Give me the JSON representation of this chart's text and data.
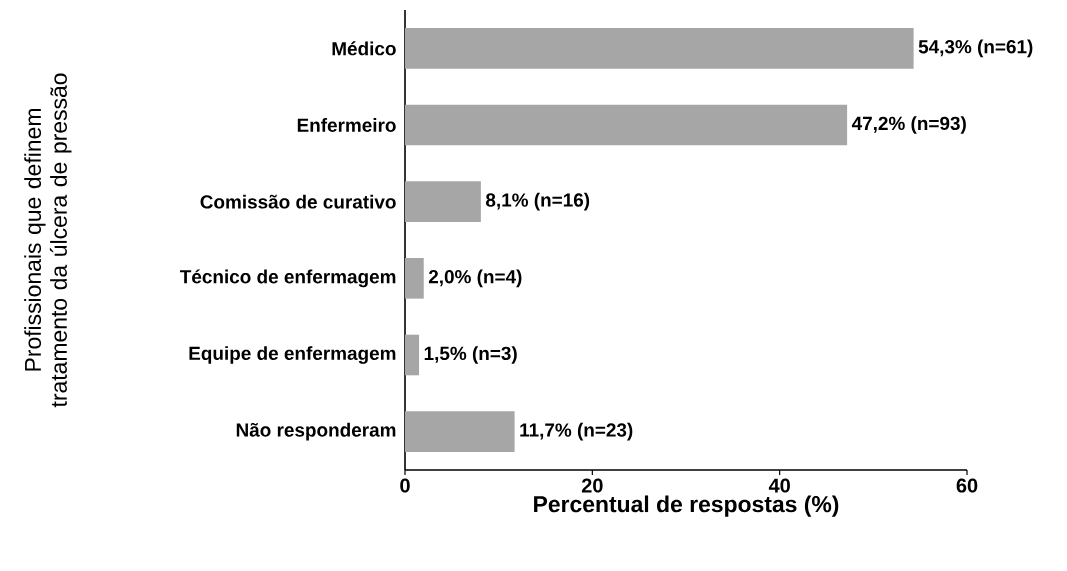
{
  "chart_data": {
    "type": "bar",
    "orientation": "horizontal",
    "categories": [
      "Médico",
      "Enfermeiro",
      "Comissão de curativo",
      "Técnico de enfermagem",
      "Equipe de enfermagem",
      "Não responderam"
    ],
    "values": [
      54.3,
      47.2,
      8.1,
      2.0,
      1.5,
      11.7
    ],
    "value_labels": [
      "54,3% (n=61)",
      "47,2% (n=93)",
      "8,1% (n=16)",
      "2,0% (n=4)",
      "1,5% (n=3)",
      "11,7% (n=23)"
    ],
    "color": "#a6a6a6",
    "xlim": [
      0,
      60
    ],
    "xticks": [
      0,
      20,
      40,
      60
    ],
    "xlabel": "Percentual de respostas (%)",
    "ylabel": "Profissionais que definem tratamento da úlcera de pressão"
  }
}
